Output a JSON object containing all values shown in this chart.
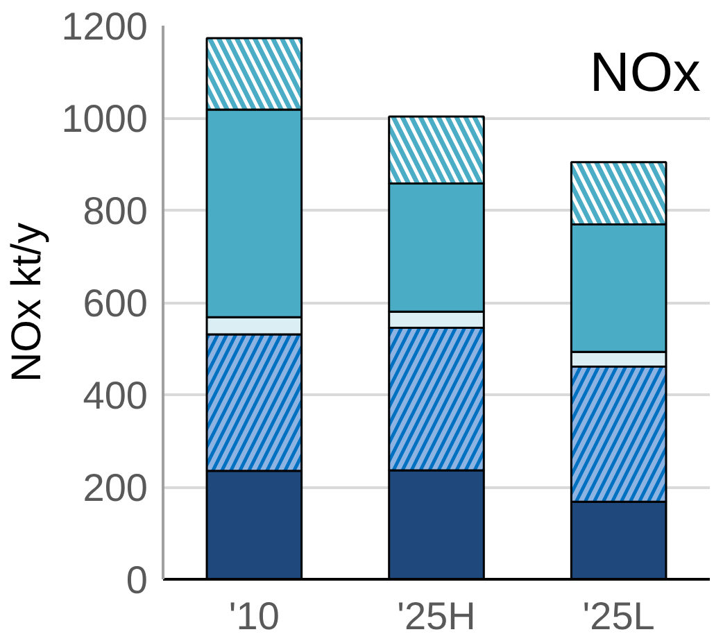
{
  "chart_data": {
    "type": "bar",
    "stacked": true,
    "ylabel": "NOx kt/y",
    "annotations": [
      "NOx"
    ],
    "categories": [
      "'10",
      "'25H",
      "'25L"
    ],
    "series": [
      {
        "color": "#1f497d",
        "values": [
          235,
          236,
          168
        ]
      },
      {
        "color": "#8db3e2",
        "values": [
          296,
          309,
          293
        ]
      },
      {
        "color": "#daeef3",
        "values": [
          37,
          35,
          32
        ]
      },
      {
        "color": "#4bacc6",
        "values": [
          450,
          278,
          276
        ]
      },
      {
        "color": "#4bacc6",
        "values": [
          155,
          145,
          135
        ]
      }
    ],
    "ylim": [
      0,
      1200
    ],
    "yticks": [
      0,
      200,
      400,
      600,
      800,
      1000,
      1200
    ],
    "grid": "y"
  }
}
